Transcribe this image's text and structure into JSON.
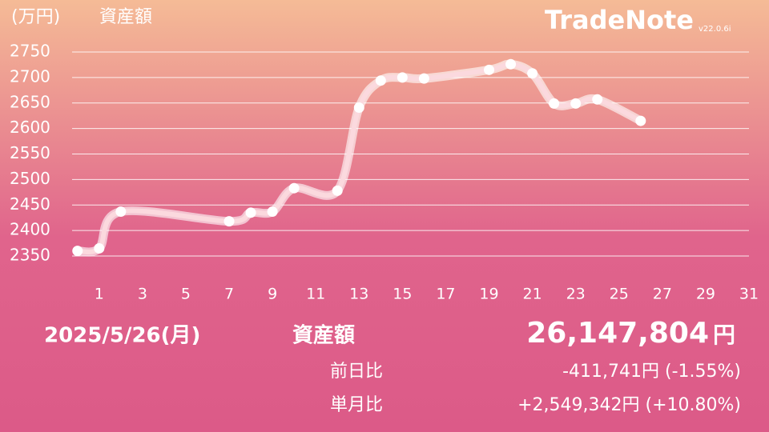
{
  "app": {
    "name": "TradeNote",
    "version": "v22.0.6i"
  },
  "chart_data": {
    "type": "line",
    "title": "資産額",
    "y_label": "(万円)",
    "x": [
      0,
      1,
      2,
      7,
      8,
      9,
      10,
      12,
      13,
      14,
      15,
      16,
      19,
      20,
      21,
      22,
      23,
      24,
      26
    ],
    "values": [
      2360,
      2365,
      2437,
      2418,
      2435,
      2437,
      2483,
      2478,
      2641,
      2694,
      2700,
      2698,
      2715,
      2726,
      2708,
      2649,
      2649,
      2657,
      2615
    ],
    "color": "#ffffff",
    "xlim": [
      -0.25,
      31
    ],
    "xticks": [
      1,
      3,
      5,
      7,
      9,
      11,
      13,
      15,
      17,
      19,
      21,
      23,
      25,
      27,
      29,
      31
    ],
    "ylim": [
      2350,
      2750
    ],
    "yticks": [
      2350,
      2400,
      2450,
      2500,
      2550,
      2600,
      2650,
      2700,
      2750
    ],
    "grid": true
  },
  "summary": {
    "date": "2025/5/26(月)",
    "label": "資産額",
    "value": "26,147,804",
    "unit": "円",
    "rows": [
      [
        "前日比",
        "-411,741円 (-1.55%)"
      ],
      [
        "単月比",
        "+2,549,342円 (+10.80%)"
      ]
    ]
  }
}
